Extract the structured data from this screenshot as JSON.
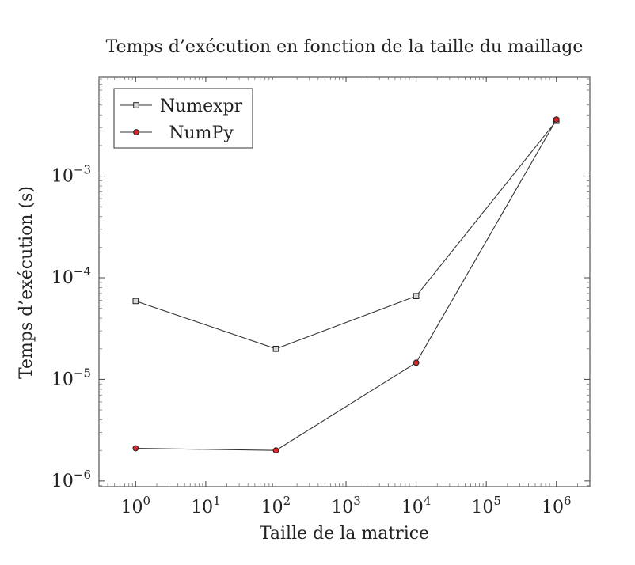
{
  "chart_data": {
    "type": "line",
    "title": "Temps d’exécution en fonction de la taille du maillage",
    "xlabel": "Taille de la matrice",
    "ylabel": "Temps d’exécution (s)",
    "x_scale": "log",
    "y_scale": "log",
    "xlim": [
      0.3,
      3000000
    ],
    "ylim": [
      8.8e-07,
      0.0095
    ],
    "x_ticks": [
      {
        "value": 1,
        "base": "10",
        "exp": "0"
      },
      {
        "value": 10,
        "base": "10",
        "exp": "1"
      },
      {
        "value": 100,
        "base": "10",
        "exp": "2"
      },
      {
        "value": 1000,
        "base": "10",
        "exp": "3"
      },
      {
        "value": 10000,
        "base": "10",
        "exp": "4"
      },
      {
        "value": 100000,
        "base": "10",
        "exp": "5"
      },
      {
        "value": 1000000,
        "base": "10",
        "exp": "6"
      }
    ],
    "y_ticks": [
      {
        "value": 1e-06,
        "base": "10",
        "exp": "−6"
      },
      {
        "value": 1e-05,
        "base": "10",
        "exp": "−5"
      },
      {
        "value": 0.0001,
        "base": "10",
        "exp": "−4"
      },
      {
        "value": 0.001,
        "base": "10",
        "exp": "−3"
      }
    ],
    "grid": false,
    "legend_position": "top-left",
    "x": [
      1,
      100,
      10000,
      1000000
    ],
    "series": [
      {
        "name": "Numexpr",
        "marker": "square",
        "color": "#333333",
        "marker_fill": "#d9d9d9",
        "values": [
          5.9e-05,
          2e-05,
          6.6e-05,
          0.0035
        ]
      },
      {
        "name": "NumPy",
        "marker": "circle",
        "color": "#333333",
        "marker_fill": "#d9272a",
        "values": [
          2.1e-06,
          2e-06,
          1.46e-05,
          0.0036
        ]
      }
    ]
  }
}
